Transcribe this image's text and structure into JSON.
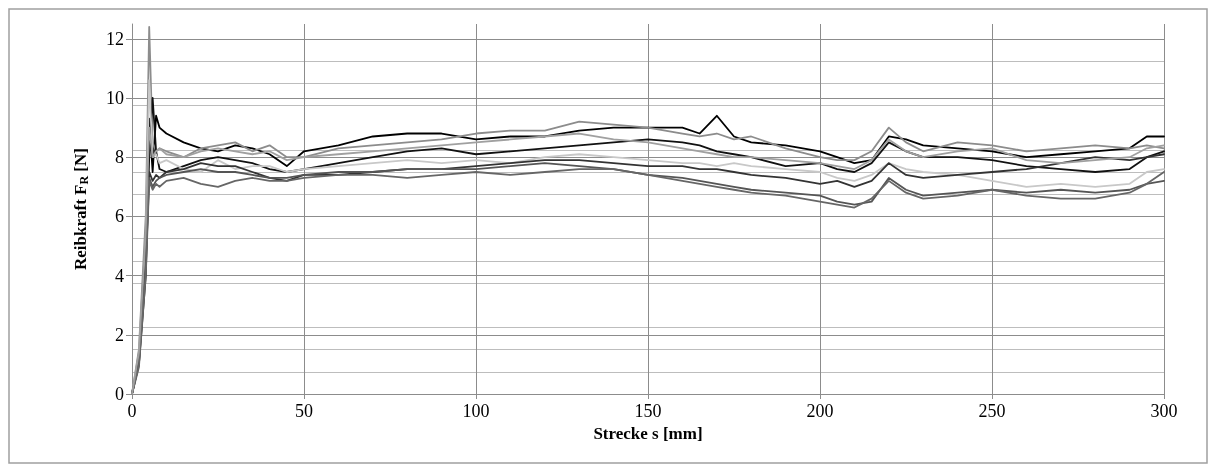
{
  "chart_data": {
    "type": "line",
    "xlabel": "Strecke s [mm]",
    "ylabel": "Reibkraft F$_{R}$ [N]",
    "x": [
      0,
      2,
      4,
      5,
      6,
      7,
      8,
      10,
      15,
      20,
      25,
      30,
      35,
      40,
      45,
      50,
      60,
      70,
      80,
      90,
      100,
      110,
      120,
      130,
      140,
      150,
      160,
      165,
      170,
      175,
      180,
      190,
      200,
      205,
      210,
      215,
      220,
      225,
      230,
      240,
      250,
      260,
      270,
      280,
      290,
      295,
      300
    ],
    "xlim": [
      0,
      300
    ],
    "xticks": [
      0,
      50,
      100,
      150,
      200,
      250,
      300
    ],
    "ylim": [
      0,
      12.5
    ],
    "yticks": [
      0,
      2,
      4,
      6,
      8,
      10,
      12
    ],
    "grid": true,
    "marker": "none",
    "line_style": "solid",
    "series": [
      {
        "color": "#000000",
        "values": [
          0,
          1.2,
          5,
          9.3,
          7.5,
          9.4,
          9.0,
          8.8,
          8.5,
          8.3,
          8.2,
          8.4,
          8.3,
          8.1,
          7.7,
          8.2,
          8.4,
          8.7,
          8.8,
          8.8,
          8.6,
          8.7,
          8.7,
          8.9,
          9.0,
          9.0,
          9.0,
          8.8,
          9.4,
          8.7,
          8.5,
          8.4,
          8.2,
          8.0,
          7.8,
          7.9,
          8.7,
          8.6,
          8.4,
          8.3,
          8.2,
          8.0,
          8.1,
          8.2,
          8.3,
          8.7,
          8.7
        ]
      },
      {
        "color": "#8c8c8c",
        "values": [
          0,
          1.5,
          6,
          12.4,
          8.5,
          8.2,
          8.3,
          8.2,
          8.0,
          8.3,
          8.4,
          8.5,
          8.2,
          8.4,
          8.0,
          8.0,
          8.3,
          8.4,
          8.5,
          8.6,
          8.8,
          8.9,
          8.9,
          9.2,
          9.1,
          9.0,
          8.8,
          8.7,
          8.8,
          8.6,
          8.7,
          8.3,
          8.0,
          7.9,
          7.9,
          8.2,
          9.0,
          8.5,
          8.2,
          8.5,
          8.4,
          8.2,
          8.3,
          8.4,
          8.3,
          8.4,
          8.3
        ]
      },
      {
        "color": "#111111",
        "values": [
          0,
          1.0,
          4,
          8,
          10.0,
          8.2,
          7.6,
          7.5,
          7.7,
          7.9,
          8.0,
          7.9,
          7.8,
          7.6,
          7.5,
          7.6,
          7.8,
          8.0,
          8.2,
          8.3,
          8.1,
          8.2,
          8.3,
          8.4,
          8.5,
          8.6,
          8.5,
          8.4,
          8.2,
          8.1,
          8.0,
          7.7,
          7.8,
          7.6,
          7.5,
          7.8,
          8.5,
          8.2,
          8.0,
          8.0,
          7.9,
          7.7,
          7.6,
          7.5,
          7.6,
          8.0,
          8.2
        ]
      },
      {
        "color": "#c8c8c8",
        "values": [
          0,
          1.3,
          5,
          10.6,
          8.0,
          8.1,
          7.8,
          7.9,
          7.6,
          7.5,
          7.9,
          7.6,
          7.7,
          7.7,
          7.5,
          7.6,
          7.7,
          7.8,
          7.9,
          7.8,
          7.9,
          7.8,
          8.0,
          8.1,
          8.0,
          7.9,
          7.8,
          7.8,
          7.7,
          7.8,
          7.7,
          7.6,
          7.5,
          7.3,
          7.2,
          7.4,
          7.8,
          7.6,
          7.5,
          7.4,
          7.2,
          7.0,
          7.1,
          7.0,
          7.1,
          7.5,
          7.6
        ]
      },
      {
        "color": "#333333",
        "values": [
          0,
          1.1,
          4.5,
          7.5,
          7.2,
          7.4,
          7.3,
          7.5,
          7.6,
          7.8,
          7.7,
          7.7,
          7.5,
          7.3,
          7.2,
          7.4,
          7.4,
          7.5,
          7.6,
          7.6,
          7.7,
          7.8,
          7.9,
          7.9,
          7.8,
          7.7,
          7.7,
          7.6,
          7.6,
          7.5,
          7.4,
          7.3,
          7.1,
          7.2,
          7.0,
          7.2,
          7.8,
          7.4,
          7.3,
          7.4,
          7.5,
          7.6,
          7.8,
          8.0,
          7.9,
          8.0,
          8.1
        ]
      },
      {
        "color": "#555555",
        "values": [
          0,
          1.0,
          4.3,
          7.3,
          7.0,
          7.2,
          7.3,
          7.4,
          7.5,
          7.6,
          7.5,
          7.5,
          7.4,
          7.3,
          7.3,
          7.4,
          7.5,
          7.5,
          7.6,
          7.6,
          7.6,
          7.7,
          7.8,
          7.7,
          7.6,
          7.4,
          7.3,
          7.2,
          7.1,
          7.0,
          6.9,
          6.8,
          6.7,
          6.5,
          6.4,
          6.5,
          7.3,
          6.9,
          6.7,
          6.8,
          6.9,
          6.8,
          6.9,
          6.8,
          6.9,
          7.1,
          7.2
        ]
      },
      {
        "color": "#666666",
        "values": [
          0,
          0.9,
          4,
          7.2,
          6.9,
          7.1,
          7.0,
          7.2,
          7.3,
          7.1,
          7.0,
          7.2,
          7.3,
          7.2,
          7.2,
          7.3,
          7.4,
          7.4,
          7.3,
          7.4,
          7.5,
          7.4,
          7.5,
          7.6,
          7.6,
          7.4,
          7.2,
          7.1,
          7.0,
          6.9,
          6.8,
          6.7,
          6.5,
          6.4,
          6.3,
          6.6,
          7.2,
          6.8,
          6.6,
          6.7,
          6.9,
          6.7,
          6.6,
          6.6,
          6.8,
          7.1,
          7.5
        ]
      },
      {
        "color": "#a0a0a0",
        "values": [
          0,
          1.4,
          5.5,
          9.0,
          8.0,
          8.2,
          8.3,
          8.1,
          8.0,
          8.2,
          8.3,
          8.2,
          8.1,
          8.2,
          7.9,
          8.0,
          8.1,
          8.2,
          8.3,
          8.4,
          8.5,
          8.6,
          8.7,
          8.8,
          8.6,
          8.5,
          8.3,
          8.2,
          8.1,
          8.0,
          8.0,
          7.9,
          7.8,
          7.7,
          7.6,
          7.9,
          8.6,
          8.2,
          8.0,
          8.2,
          8.3,
          7.9,
          7.8,
          7.9,
          8.0,
          8.3,
          8.4
        ]
      }
    ]
  }
}
